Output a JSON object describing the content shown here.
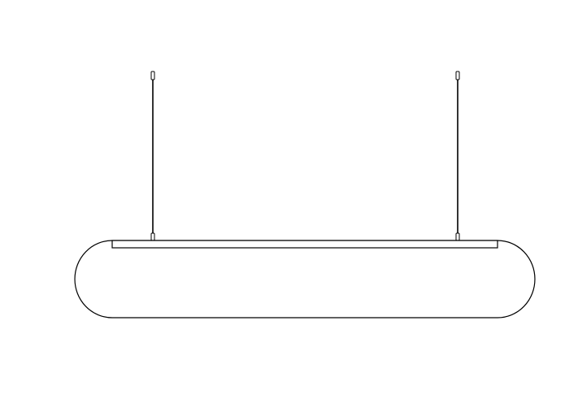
{
  "drawing": {
    "subject": "pendant-light-elevation",
    "stroke_color": "#000000",
    "fill_color": "#ffffff",
    "background_color": "#ffffff",
    "suspension_cable_count": 2
  }
}
